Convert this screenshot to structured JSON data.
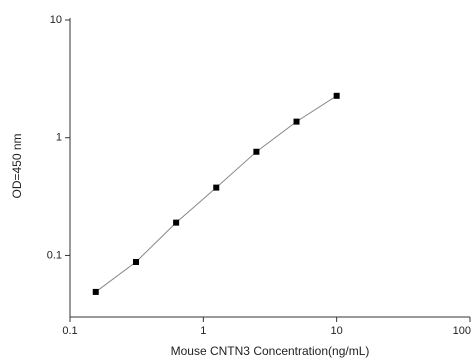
{
  "chart_data": {
    "type": "scatter",
    "x_label": "Mouse CNTN3 Concentration(ng/mL)",
    "y_label": "OD=450 nm",
    "log_x": true,
    "log_y": true,
    "x": [
      0.156,
      0.3125,
      0.625,
      1.25,
      2.5,
      5,
      10
    ],
    "values": [
      0.049,
      0.088,
      0.19,
      0.377,
      0.76,
      1.37,
      2.27
    ],
    "color": "#000000",
    "line_color": "#888888",
    "xlim": [
      0.1,
      100
    ],
    "xticks": [
      0.1,
      1,
      10,
      100
    ],
    "ylim": [
      0.03,
      10
    ],
    "yticks": [
      0.1,
      1,
      10
    ]
  }
}
